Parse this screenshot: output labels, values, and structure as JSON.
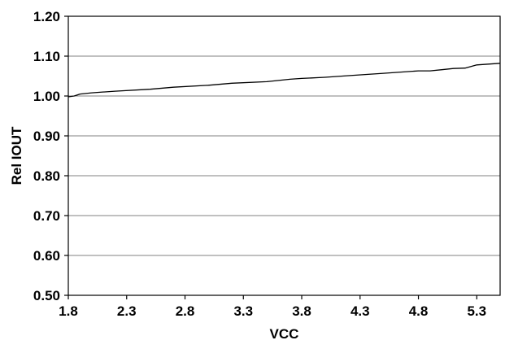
{
  "chart_data": {
    "type": "line",
    "title": "",
    "xlabel": "VCC",
    "ylabel": "Rel IOUT",
    "xlim": [
      1.8,
      5.5
    ],
    "ylim": [
      0.5,
      1.2
    ],
    "x_ticks": [
      "1.8",
      "2.3",
      "2.8",
      "3.3",
      "3.8",
      "4.3",
      "4.8",
      "5.3"
    ],
    "x_tick_values": [
      1.8,
      2.3,
      2.8,
      3.3,
      3.8,
      4.3,
      4.8,
      5.3
    ],
    "y_ticks": [
      "1.20",
      "1.10",
      "1.00",
      "0.90",
      "0.80",
      "0.70",
      "0.60",
      "0.50"
    ],
    "y_tick_values": [
      1.2,
      1.1,
      1.0,
      0.9,
      0.8,
      0.7,
      0.6,
      0.5
    ],
    "grid": "horizontal",
    "legend": "none",
    "series": [
      {
        "color": "#000000",
        "x": [
          1.8,
          1.85,
          1.9,
          2.0,
          2.2,
          2.5,
          2.7,
          3.0,
          3.2,
          3.5,
          3.7,
          3.8,
          4.0,
          4.2,
          4.5,
          4.8,
          4.9,
          5.0,
          5.1,
          5.2,
          5.3,
          5.4,
          5.5
        ],
        "y": [
          0.998,
          1.0,
          1.005,
          1.008,
          1.012,
          1.017,
          1.022,
          1.027,
          1.032,
          1.036,
          1.042,
          1.044,
          1.047,
          1.051,
          1.057,
          1.063,
          1.063,
          1.066,
          1.069,
          1.07,
          1.078,
          1.08,
          1.082
        ]
      }
    ]
  }
}
